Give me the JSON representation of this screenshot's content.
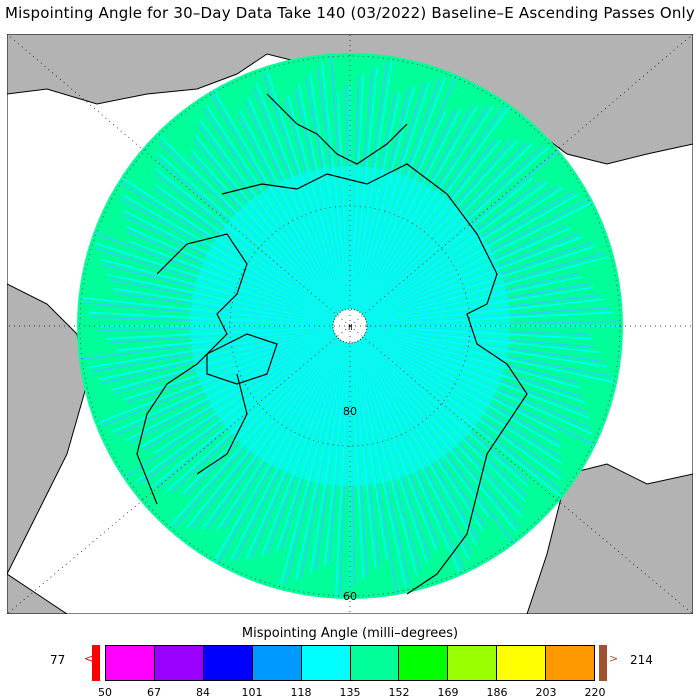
{
  "title": "Mispointing Angle for 30–Day Data Take 140 (03/2022) Baseline–E Ascending Passes Only",
  "map": {
    "projection": "polar-stereographic-north",
    "latitude_labels": [
      "80",
      "60"
    ],
    "colors": {
      "ocean": "#ffffff",
      "land_outside": "#b3b3b3",
      "data_main": "#00ffff",
      "data_secondary": "#00ff99",
      "data_tertiary": "#33ccff",
      "coastline": "#000000"
    }
  },
  "colorbar": {
    "title": "Mispointing Angle (milli–degrees)",
    "min_value": "77",
    "max_value": "214",
    "under_color": "#ff0000",
    "over_color": "#a0522d",
    "ticks": [
      "50",
      "67",
      "84",
      "101",
      "118",
      "135",
      "152",
      "169",
      "186",
      "203",
      "220"
    ],
    "colors": [
      "#ff00ff",
      "#9900ff",
      "#0000ff",
      "#0099ff",
      "#00ffff",
      "#00ff99",
      "#00ff00",
      "#99ff00",
      "#ffff00",
      "#ff9900"
    ]
  }
}
